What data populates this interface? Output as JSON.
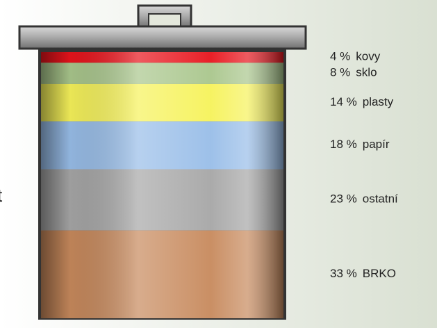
{
  "chart_data": {
    "type": "stacked-can",
    "annotation": "t",
    "series": [
      {
        "name": "kovy",
        "color": "#e8141c",
        "values": [
          4
        ],
        "value_labels": [
          "4 %"
        ]
      },
      {
        "name": "sklo",
        "color": "#a9c68c",
        "values": [
          8
        ],
        "value_labels": [
          "8 %"
        ]
      },
      {
        "name": "plasty",
        "color": "#f6f25a",
        "values": [
          14
        ],
        "value_labels": [
          "14 %"
        ]
      },
      {
        "name": "papír",
        "color": "#98bde8",
        "values": [
          18
        ],
        "value_labels": [
          "18 %"
        ]
      },
      {
        "name": "ostatní",
        "color": "#a6a6a6",
        "values": [
          23
        ],
        "value_labels": [
          "23 %"
        ]
      },
      {
        "name": "BRKO",
        "color": "#c7895c",
        "values": [
          33
        ],
        "value_labels": [
          "33 %"
        ]
      }
    ]
  }
}
